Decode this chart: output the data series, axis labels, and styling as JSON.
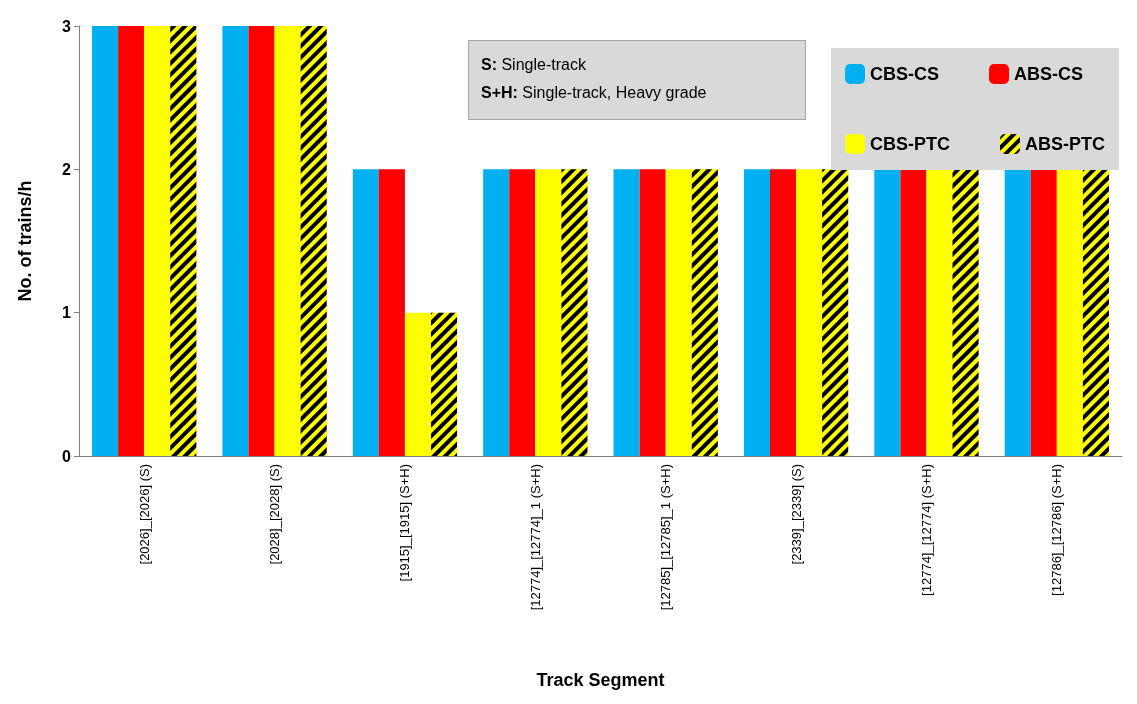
{
  "chart_data": {
    "type": "bar",
    "xlabel": "Track Segment",
    "ylabel": "No. of trains/h",
    "categories": [
      "[2026]_[2026] (S)",
      "[2028]_[2028] (S)",
      "[1915]_[1915] (S+H)",
      "[12774]_[12774]_1 (S+H)",
      "[12785]_[12785]_1 (S+H)",
      "[2339]_[2339] (S)",
      "[12774]_[12774] (S+H)",
      "[12786]_[12786] (S+H)"
    ],
    "series": [
      {
        "name": "CBS-CS",
        "color": "#00b0f0",
        "values": [
          3,
          3,
          2,
          2,
          2,
          2,
          2,
          2
        ]
      },
      {
        "name": "ABS-CS",
        "color": "#ff0000",
        "values": [
          3,
          3,
          2,
          2,
          2,
          2,
          2,
          2
        ]
      },
      {
        "name": "CBS-PTC",
        "color": "#ffff00",
        "values": [
          3,
          3,
          1,
          2,
          2,
          2,
          2,
          2
        ]
      },
      {
        "name": "ABS-PTC",
        "color": "#ffff00",
        "values": [
          3,
          3,
          1,
          2,
          2,
          2,
          2,
          2
        ]
      }
    ],
    "ylim": [
      0,
      3
    ],
    "yticks": [
      0,
      1,
      2,
      3
    ],
    "grid": false,
    "legend": "top right",
    "annotations": [
      "S: Single-track",
      "S+H: Single-track, Heavy grade"
    ]
  }
}
